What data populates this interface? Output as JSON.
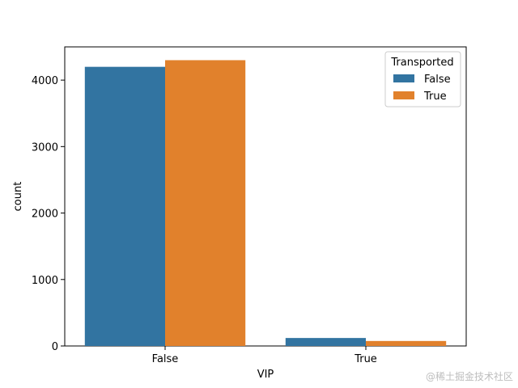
{
  "chart_data": {
    "type": "bar",
    "xlabel": "VIP",
    "ylabel": "count",
    "categories": [
      "False",
      "True"
    ],
    "ylim": [
      0,
      4500
    ],
    "yticks": [
      0,
      1000,
      2000,
      3000,
      4000
    ],
    "legend": {
      "title": "Transported",
      "placement": "top-right"
    },
    "series": [
      {
        "name": "False",
        "color": "#3274a1",
        "values": [
          4200,
          120
        ]
      },
      {
        "name": "True",
        "color": "#e1812c",
        "values": [
          4300,
          75
        ]
      }
    ]
  },
  "watermark": "@稀土掘金技术社区"
}
